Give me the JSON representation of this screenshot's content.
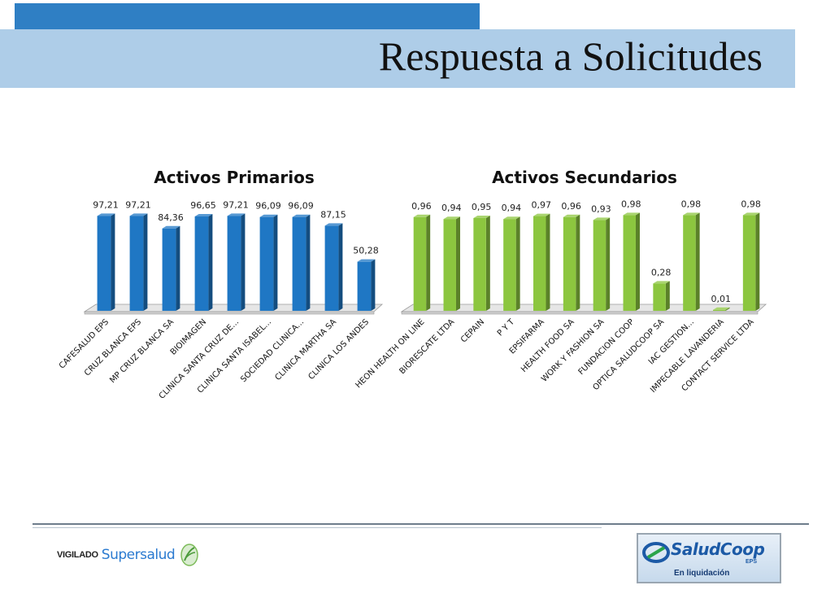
{
  "slide": {
    "title": "Respuesta a Solicitudes"
  },
  "footer": {
    "vigilado_label": "VIGILADO",
    "vigilado_brand": "Supersalud",
    "logo_name": "SaludCoop",
    "logo_eps": "EPS",
    "logo_subtitle": "En liquidación"
  },
  "chart_data": [
    {
      "type": "bar",
      "title": "Activos Primarios",
      "color": "#1f77c4",
      "categories": [
        "CAFESALUD EPS",
        "CRUZ BLANCA EPS",
        "MP CRUZ BLANCA SA",
        "BIOIMAGEN",
        "CLINICA SANTA CRUZ DE...",
        "CLINICA SANTA ISABEL...",
        "SOCIEDAD CLINICA...",
        "CLINICA MARTHA SA",
        "CLINICA LOS ANDES"
      ],
      "values": [
        97.21,
        97.21,
        84.36,
        96.65,
        97.21,
        96.09,
        96.09,
        87.15,
        50.28
      ],
      "value_labels": [
        "97,21",
        "97,21",
        "84,36",
        "96,65",
        "97,21",
        "96,09",
        "96,09",
        "87,15",
        "50,28"
      ],
      "ylim": [
        0,
        100
      ],
      "grid": false,
      "legend": "none"
    },
    {
      "type": "bar",
      "title": "Activos Secundarios",
      "color": "#8cc63f",
      "categories": [
        "HEON HEALTH ON LINE",
        "BIORESCATE LTDA",
        "CEPAIN",
        "P Y T",
        "EPSIFARMA",
        "HEALTH FOOD SA",
        "WORK Y FASHION SA",
        "FUNDACION COOP",
        "OPTICA SALUDCOOP SA",
        "IAC GESTION...",
        "IMPECABLE LAVANDERIA",
        "CONTACT SERVICE LTDA"
      ],
      "values": [
        0.96,
        0.94,
        0.95,
        0.94,
        0.97,
        0.96,
        0.93,
        0.98,
        0.28,
        0.98,
        0.01,
        0.98
      ],
      "value_labels": [
        "0,96",
        "0,94",
        "0,95",
        "0,94",
        "0,97",
        "0,96",
        "0,93",
        "0,98",
        "0,28",
        "0,98",
        "0,01",
        "0,98"
      ],
      "ylim": [
        0,
        1
      ],
      "grid": false,
      "legend": "none"
    }
  ]
}
